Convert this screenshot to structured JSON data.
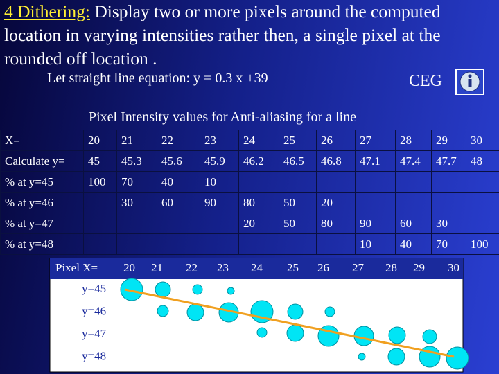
{
  "title": {
    "label": "4 Dithering:",
    "text": "Display two or more pixels around the computed location in varying intensities rather then, a single pixel at the rounded off location ."
  },
  "equation": "Let straight line equation: y = 0.3 x +39",
  "badge": "CEG",
  "table": {
    "caption": "Pixel Intensity values for Anti-aliasing for a line",
    "rows": [
      [
        "X=",
        "20",
        "21",
        "22",
        "23",
        "24",
        "25",
        "26",
        "27",
        "28",
        "29",
        "30"
      ],
      [
        "Calculate y=",
        "45",
        "45.3",
        "45.6",
        "45.9",
        "46.2",
        "46.5",
        "46.8",
        "47.1",
        "47.4",
        "47.7",
        "48"
      ],
      [
        "% at y=45",
        "100",
        "70",
        "40",
        "10",
        null,
        null,
        null,
        null,
        null,
        null,
        null
      ],
      [
        "% at y=46",
        null,
        "30",
        "60",
        "90",
        "80",
        "50",
        "20",
        null,
        null,
        null,
        null
      ],
      [
        "% at y=47",
        null,
        null,
        null,
        null,
        "20",
        "50",
        "80",
        "90",
        "60",
        "30",
        null
      ],
      [
        "% at y=48",
        null,
        null,
        null,
        null,
        null,
        null,
        null,
        "10",
        "40",
        "70",
        "100"
      ]
    ]
  },
  "diagram": {
    "header": [
      "Pixel  X=",
      "20",
      "21",
      "22",
      "23",
      "24",
      "25",
      "26",
      "27",
      "28",
      "29",
      "30"
    ],
    "rows": [
      "y=45",
      "y=46",
      "y=47",
      "y=48"
    ]
  }
}
